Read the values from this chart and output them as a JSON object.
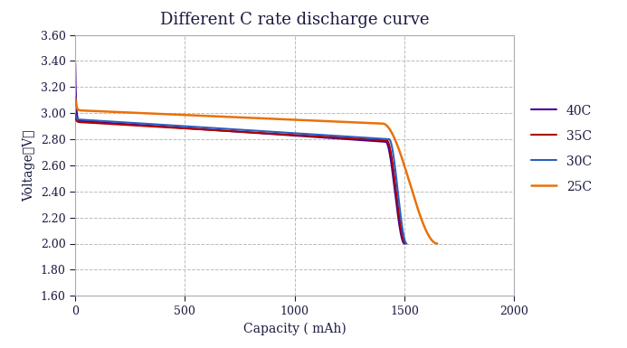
{
  "title": "Different C rate discharge curve",
  "xlabel": "Capacity ( mAh)",
  "ylabel": "Voltage（V）",
  "xlim": [
    0,
    2000
  ],
  "ylim": [
    1.6,
    3.6
  ],
  "xticks": [
    0,
    500,
    1000,
    1500,
    2000
  ],
  "yticks": [
    1.6,
    1.8,
    2.0,
    2.2,
    2.4,
    2.6,
    2.8,
    3.0,
    3.2,
    3.4,
    3.6
  ],
  "curves": [
    {
      "label": "25C",
      "color": "#E8720C",
      "linewidth": 1.8,
      "zorder": 5
    },
    {
      "label": "30C",
      "color": "#2B5FBF",
      "linewidth": 1.5,
      "zorder": 4
    },
    {
      "label": "35C",
      "color": "#B00000",
      "linewidth": 1.5,
      "zorder": 3
    },
    {
      "label": "40C",
      "color": "#4B0090",
      "linewidth": 1.5,
      "zorder": 2
    }
  ],
  "background_color": "#FFFFFF",
  "grid_color": "#BBBBBB",
  "title_fontsize": 13,
  "axis_label_fontsize": 10,
  "tick_fontsize": 9,
  "legend_fontsize": 10,
  "text_color": "#1a1a40"
}
